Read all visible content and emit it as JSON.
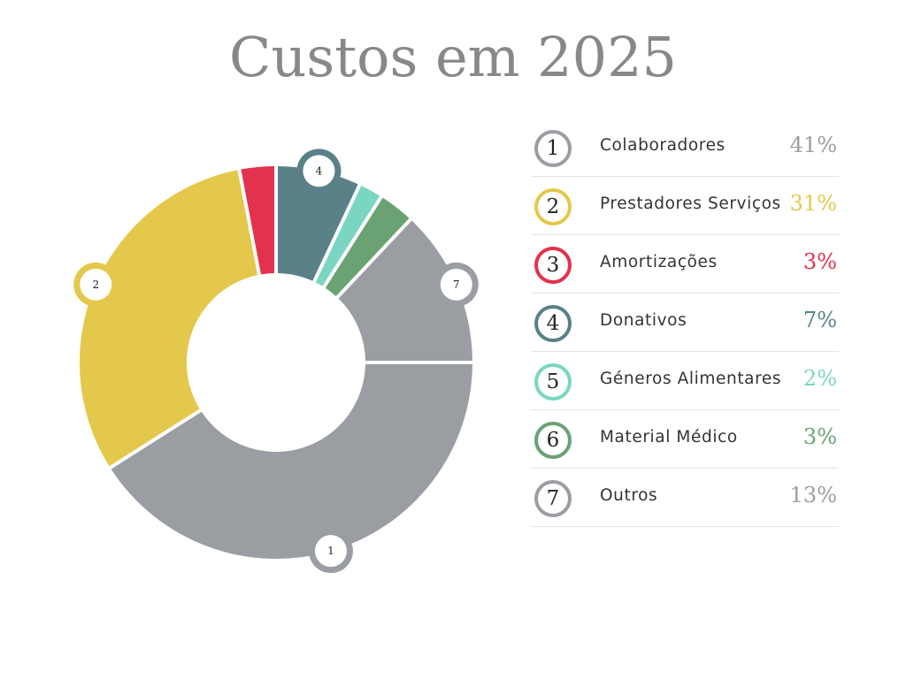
{
  "title": "Custos em 2025",
  "chart_data": {
    "type": "pie",
    "title": "Custos em 2025",
    "style": "donut",
    "categories": [
      "Colaboradores",
      "Prestadores Serviços",
      "Amortizações",
      "Donativos",
      "Géneros Alimentares",
      "Material Médico",
      "Outros"
    ],
    "values": [
      41,
      31,
      3,
      7,
      2,
      3,
      13
    ],
    "unit": "%",
    "numbers": [
      "1",
      "2",
      "3",
      "4",
      "5",
      "6",
      "7"
    ],
    "colors": [
      "#9a9ea2",
      "#e4c84c",
      "#e3324d",
      "#5a8088",
      "#7ad6c0",
      "#6aa273",
      "#9a9ea2"
    ],
    "percent_labels": [
      "41%",
      "31%",
      "3%",
      "7%",
      "2%",
      "3%",
      "13%"
    ],
    "slice_markers": [
      "1",
      "2",
      "4",
      "7"
    ],
    "legend_position": "right"
  }
}
